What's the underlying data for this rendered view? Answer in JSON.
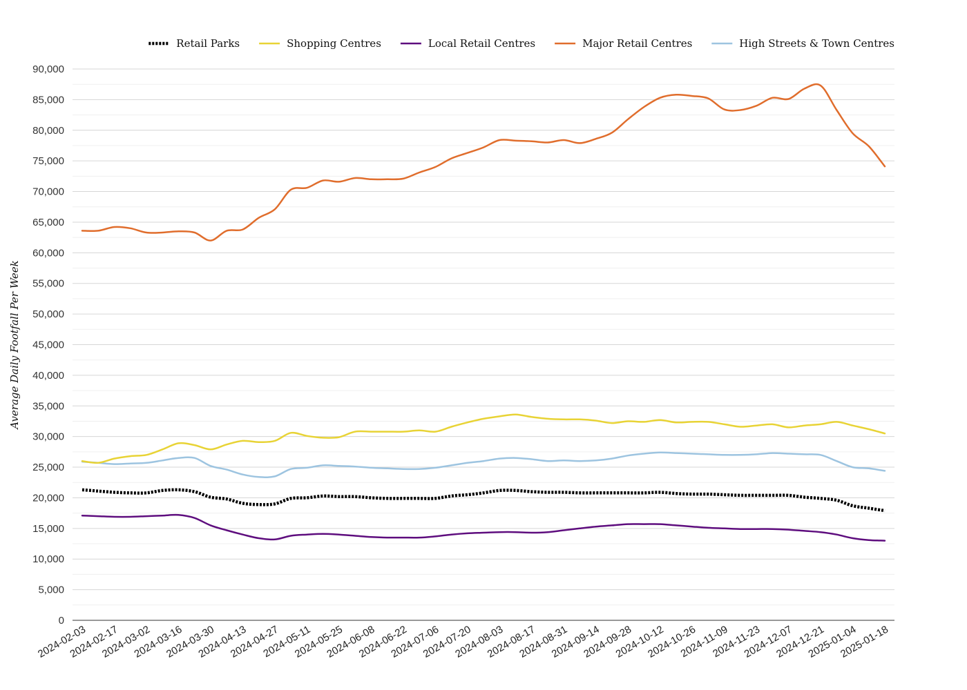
{
  "chart_data": {
    "type": "line",
    "title": "",
    "xlabel": "",
    "ylabel": "Average Daily Footfall Per Week",
    "ylim": [
      0,
      90000
    ],
    "y_ticks": [
      0,
      5000,
      10000,
      15000,
      20000,
      25000,
      30000,
      35000,
      40000,
      45000,
      50000,
      55000,
      60000,
      65000,
      70000,
      75000,
      80000,
      85000,
      90000
    ],
    "y_tick_labels": [
      "0",
      "5,000",
      "10,000",
      "15,000",
      "20,000",
      "25,000",
      "30,000",
      "35,000",
      "40,000",
      "45,000",
      "50,000",
      "55,000",
      "60,000",
      "65,000",
      "70,000",
      "75,000",
      "80,000",
      "85,000",
      "90,000"
    ],
    "x_tick_labels": [
      "2024-02-03",
      "2024-02-17",
      "2024-03-02",
      "2024-03-16",
      "2024-03-30",
      "2024-04-13",
      "2024-04-27",
      "2024-05-11",
      "2024-05-25",
      "2024-06-08",
      "2024-06-22",
      "2024-07-06",
      "2024-07-20",
      "2024-08-03",
      "2024-08-17",
      "2024-08-31",
      "2024-09-14",
      "2024-09-28",
      "2024-10-12",
      "2024-10-26",
      "2024-11-09",
      "2024-11-23",
      "2024-12-07",
      "2024-12-21",
      "2025-01-04",
      "2025-01-18"
    ],
    "grid": true,
    "legend_position": "top-right",
    "x": [
      "2024-02-03",
      "2024-02-10",
      "2024-02-17",
      "2024-02-24",
      "2024-03-02",
      "2024-03-09",
      "2024-03-16",
      "2024-03-23",
      "2024-03-30",
      "2024-04-06",
      "2024-04-13",
      "2024-04-20",
      "2024-04-27",
      "2024-05-04",
      "2024-05-11",
      "2024-05-18",
      "2024-05-25",
      "2024-06-01",
      "2024-06-08",
      "2024-06-15",
      "2024-06-22",
      "2024-06-29",
      "2024-07-06",
      "2024-07-13",
      "2024-07-20",
      "2024-07-27",
      "2024-08-03",
      "2024-08-10",
      "2024-08-17",
      "2024-08-24",
      "2024-08-31",
      "2024-09-07",
      "2024-09-14",
      "2024-09-21",
      "2024-09-28",
      "2024-10-05",
      "2024-10-12",
      "2024-10-19",
      "2024-10-26",
      "2024-11-02",
      "2024-11-09",
      "2024-11-16",
      "2024-11-23",
      "2024-11-30",
      "2024-12-07",
      "2024-12-14",
      "2024-12-21",
      "2024-12-28",
      "2025-01-04",
      "2025-01-11",
      "2025-01-18"
    ],
    "series": [
      {
        "name": "Retail Parks",
        "color": "#000000",
        "style": "dotted",
        "values": [
          21300,
          21100,
          20900,
          20800,
          20800,
          21200,
          21300,
          21000,
          20100,
          19800,
          19100,
          18900,
          19000,
          19900,
          20000,
          20300,
          20200,
          20200,
          20000,
          19900,
          19900,
          19900,
          19900,
          20300,
          20500,
          20800,
          21200,
          21200,
          21000,
          20900,
          20900,
          20800,
          20800,
          20800,
          20800,
          20800,
          20900,
          20700,
          20600,
          20600,
          20500,
          20400,
          20400,
          20400,
          20400,
          20100,
          19900,
          19600,
          18700,
          18300,
          17900
        ]
      },
      {
        "name": "Shopping Centres",
        "color": "#e8d335",
        "style": "solid",
        "values": [
          26000,
          25700,
          26400,
          26800,
          27000,
          27900,
          28900,
          28600,
          27900,
          28700,
          29300,
          29100,
          29300,
          30600,
          30100,
          29800,
          29900,
          30800,
          30800,
          30800,
          30800,
          31000,
          30800,
          31600,
          32300,
          32900,
          33300,
          33600,
          33200,
          32900,
          32800,
          32800,
          32600,
          32200,
          32500,
          32400,
          32700,
          32300,
          32400,
          32400,
          32000,
          31600,
          31800,
          32000,
          31500,
          31800,
          32000,
          32400,
          31800,
          31200,
          30500
        ]
      },
      {
        "name": "Local Retail Centres",
        "color": "#5e0d7e",
        "style": "solid",
        "values": [
          17100,
          17000,
          16900,
          16900,
          17000,
          17100,
          17200,
          16700,
          15500,
          14700,
          14000,
          13400,
          13200,
          13800,
          14000,
          14100,
          14000,
          13800,
          13600,
          13500,
          13500,
          13500,
          13700,
          14000,
          14200,
          14300,
          14400,
          14400,
          14300,
          14400,
          14700,
          15000,
          15300,
          15500,
          15700,
          15700,
          15700,
          15500,
          15300,
          15100,
          15000,
          14900,
          14900,
          14900,
          14800,
          14600,
          14400,
          14000,
          13400,
          13100,
          13000
        ]
      },
      {
        "name": "Major Retail Centres",
        "color": "#e06d2c",
        "style": "solid",
        "values": [
          63600,
          63600,
          64200,
          64000,
          63300,
          63300,
          63500,
          63300,
          62000,
          63600,
          63800,
          65700,
          67100,
          70300,
          70600,
          71800,
          71600,
          72200,
          72000,
          72000,
          72100,
          73100,
          74000,
          75400,
          76300,
          77200,
          78400,
          78300,
          78200,
          78000,
          78400,
          77900,
          78600,
          79600,
          81800,
          83800,
          85300,
          85800,
          85600,
          85200,
          83400,
          83300,
          84000,
          85300,
          85100,
          86800,
          87300,
          83300,
          79500,
          77400,
          74100
        ]
      },
      {
        "name": "High Streets & Town Centres",
        "color": "#9dc4e0",
        "style": "solid",
        "values": [
          25900,
          25700,
          25500,
          25600,
          25700,
          26100,
          26500,
          26500,
          25200,
          24600,
          23800,
          23400,
          23500,
          24700,
          24900,
          25300,
          25200,
          25100,
          24900,
          24800,
          24700,
          24700,
          24900,
          25300,
          25700,
          26000,
          26400,
          26500,
          26300,
          26000,
          26100,
          26000,
          26100,
          26400,
          26900,
          27200,
          27400,
          27300,
          27200,
          27100,
          27000,
          27000,
          27100,
          27300,
          27200,
          27100,
          27000,
          26000,
          25000,
          24800,
          24400
        ]
      }
    ]
  }
}
